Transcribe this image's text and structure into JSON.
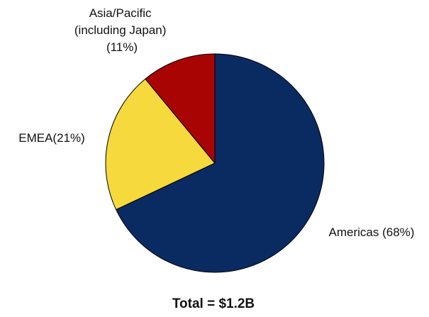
{
  "chart_data": {
    "type": "pie",
    "total_label": "Total = $1.2B",
    "slices": [
      {
        "label_lines": [
          "Americas (68%)"
        ],
        "value": 68,
        "color": "#0a2a62"
      },
      {
        "label_lines": [
          "EMEA(21%)"
        ],
        "value": 21,
        "color": "#f5d93d"
      },
      {
        "label_lines": [
          "Asia/Pacific",
          "(including Japan)",
          "(11%)"
        ],
        "value": 11,
        "color": "#a80404"
      }
    ]
  }
}
